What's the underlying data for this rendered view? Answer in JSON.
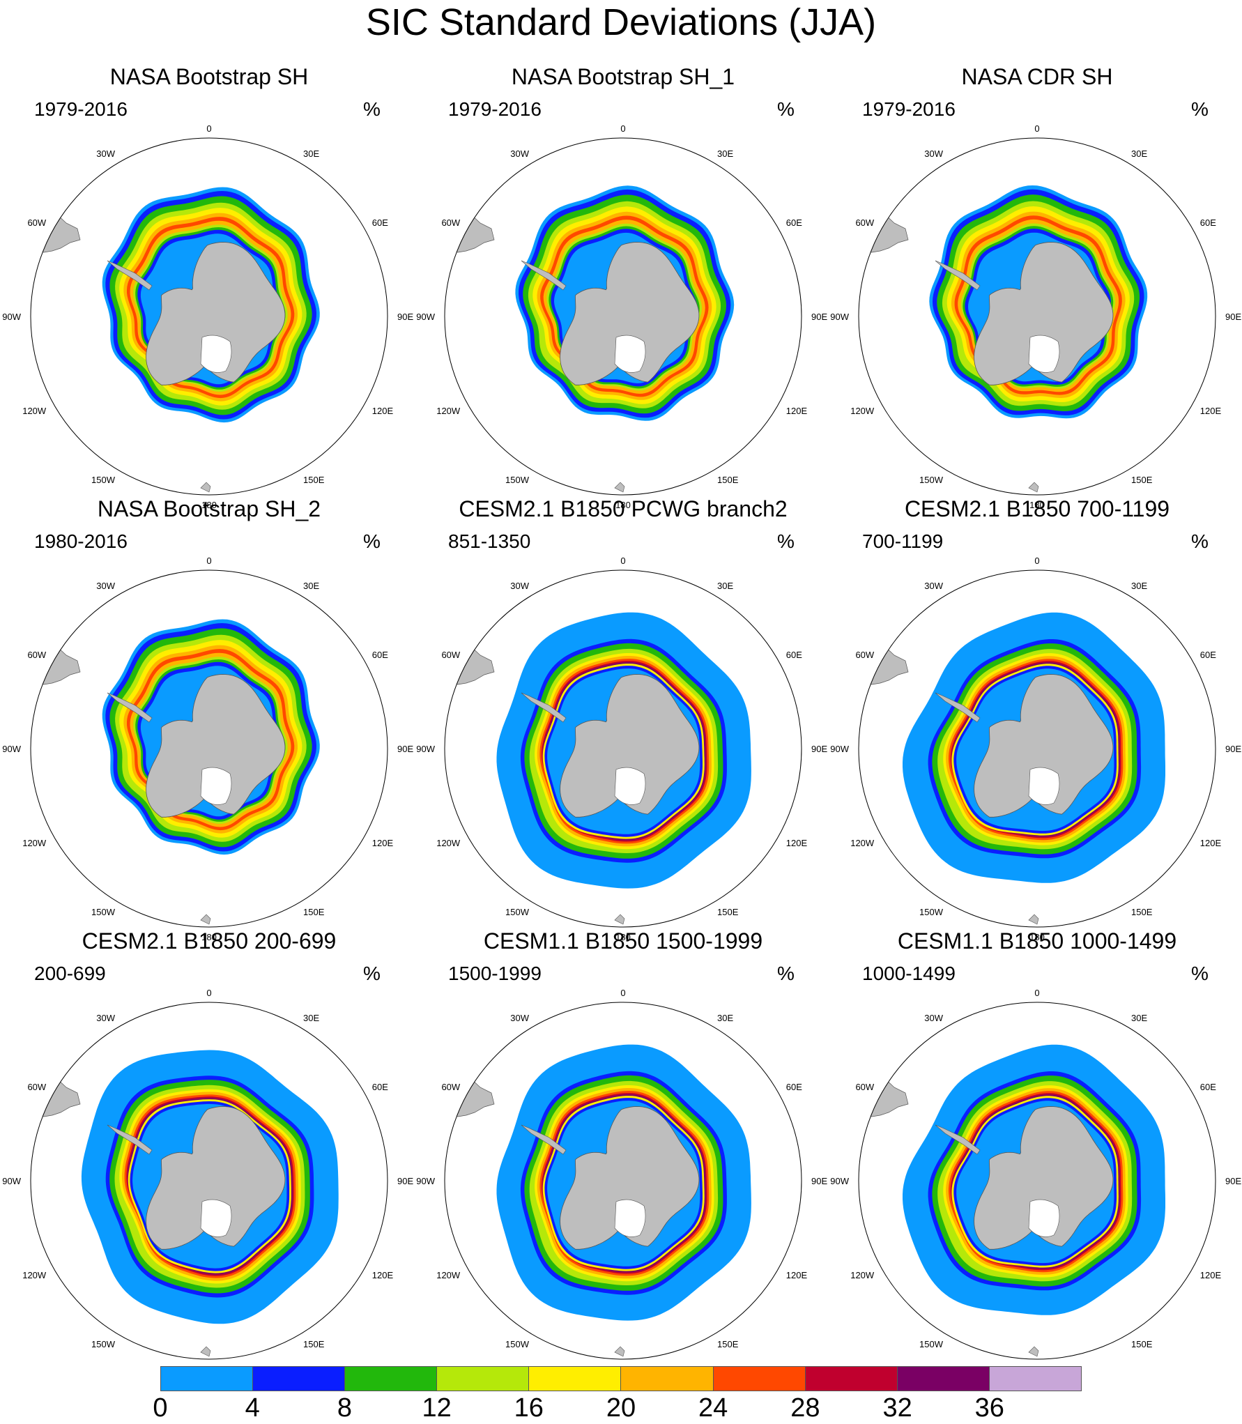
{
  "title": "SIC Standard Deviations (JJA)",
  "unit": "%",
  "panels": [
    {
      "title": "NASA Bootstrap SH",
      "period": "1979-2016",
      "type": "obs",
      "variant": 0
    },
    {
      "title": "NASA Bootstrap SH_1",
      "period": "1979-2016",
      "type": "obs",
      "variant": 1
    },
    {
      "title": "NASA CDR SH",
      "period": "1979-2016",
      "type": "obs",
      "variant": 2
    },
    {
      "title": "NASA Bootstrap SH_2",
      "period": "1980-2016",
      "type": "obs",
      "variant": 0
    },
    {
      "title": "CESM2.1 B1850 PCWG branch2",
      "period": "851-1350",
      "type": "model",
      "variant": 1
    },
    {
      "title": "CESM2.1 B1850 700-1199",
      "period": "700-1199",
      "type": "model",
      "variant": 0
    },
    {
      "title": "CESM2.1 B1850 200-699",
      "period": "200-699",
      "type": "model",
      "variant": 2
    },
    {
      "title": "CESM1.1 B1850 1500-1999",
      "period": "1500-1999",
      "type": "model",
      "variant": 1
    },
    {
      "title": "CESM1.1 B1850 1000-1499",
      "period": "1000-1499",
      "type": "model",
      "variant": 0
    }
  ],
  "longitude_labels": [
    "0",
    "30E",
    "60E",
    "90E",
    "120E",
    "150E",
    "180",
    "150W",
    "120W",
    "90W",
    "60W",
    "30W"
  ],
  "colorbar": {
    "ticks": [
      "0",
      "4",
      "8",
      "12",
      "16",
      "20",
      "24",
      "28",
      "32",
      "36"
    ],
    "colors": [
      "#0a9bff",
      "#0a1eff",
      "#22b80c",
      "#b5e80a",
      "#ffee00",
      "#ffb400",
      "#ff4800",
      "#c0002e",
      "#7a0064",
      "#c8a6d8"
    ]
  },
  "map_colors": {
    "land": "#bebebe",
    "ice_shelf": "#ffffff",
    "outline": "#555555"
  }
}
